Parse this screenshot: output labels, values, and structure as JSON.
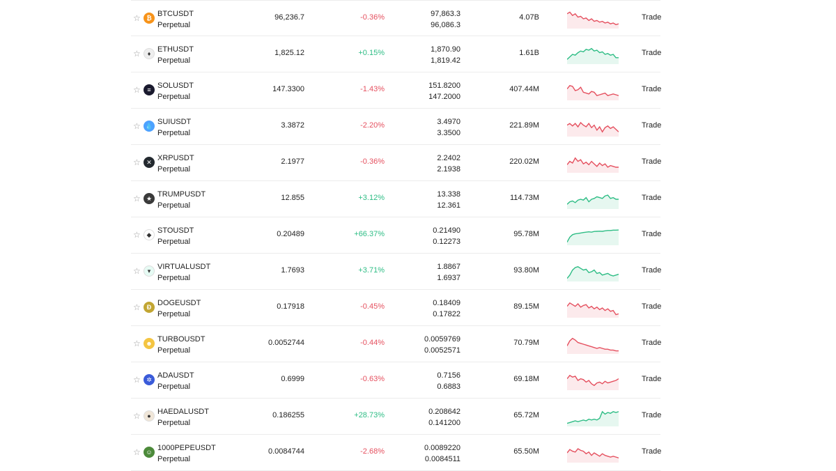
{
  "colors": {
    "negative": "#e5505f",
    "positive": "#2ebd85"
  },
  "rows": [
    {
      "symbol": "BTCUSDT",
      "type": "Perpetual",
      "price": "96,236.7",
      "change": "-0.36%",
      "dir": "neg",
      "high": "97,863.3",
      "low": "96,086.3",
      "volume": "4.07B",
      "trade": "Trade",
      "icon": "bitcoin-icon",
      "icon_color": "#f7931a",
      "icon_glyph": "₿",
      "spark": [
        0.8,
        0.9,
        0.7,
        0.8,
        0.6,
        0.65,
        0.5,
        0.55,
        0.4,
        0.5,
        0.35,
        0.4,
        0.3,
        0.35,
        0.25,
        0.3,
        0.2,
        0.25,
        0.15,
        0.2
      ]
    },
    {
      "symbol": "ETHUSDT",
      "type": "Perpetual",
      "price": "1,825.12",
      "change": "+0.15%",
      "dir": "pos",
      "high": "1,870.90",
      "low": "1,819.42",
      "volume": "1.61B",
      "trade": "Trade",
      "icon": "ethereum-icon",
      "icon_color": "#eeeeee",
      "icon_glyph": "♦",
      "spark": [
        0.2,
        0.35,
        0.5,
        0.45,
        0.6,
        0.7,
        0.65,
        0.8,
        0.75,
        0.85,
        0.7,
        0.75,
        0.6,
        0.65,
        0.5,
        0.55,
        0.45,
        0.5,
        0.3,
        0.3
      ]
    },
    {
      "symbol": "SOLUSDT",
      "type": "Perpetual",
      "price": "147.3300",
      "change": "-1.43%",
      "dir": "neg",
      "high": "151.8200",
      "low": "147.2000",
      "volume": "407.44M",
      "trade": "Trade",
      "icon": "solana-icon",
      "icon_color": "#1a1a2e",
      "icon_glyph": "≡",
      "spark": [
        0.6,
        0.8,
        0.75,
        0.5,
        0.55,
        0.7,
        0.4,
        0.35,
        0.3,
        0.45,
        0.4,
        0.2,
        0.25,
        0.3,
        0.35,
        0.2,
        0.25,
        0.3,
        0.25,
        0.2
      ]
    },
    {
      "symbol": "SUIUSDT",
      "type": "Perpetual",
      "price": "3.3872",
      "change": "-2.20%",
      "dir": "neg",
      "high": "3.4970",
      "low": "3.3500",
      "volume": "221.89M",
      "trade": "Trade",
      "icon": "sui-icon",
      "icon_color": "#4da2ff",
      "icon_glyph": "💧",
      "spark": [
        0.6,
        0.7,
        0.55,
        0.7,
        0.5,
        0.75,
        0.6,
        0.5,
        0.7,
        0.45,
        0.6,
        0.3,
        0.5,
        0.2,
        0.45,
        0.55,
        0.4,
        0.5,
        0.35,
        0.2
      ]
    },
    {
      "symbol": "XRPUSDT",
      "type": "Perpetual",
      "price": "2.1977",
      "change": "-0.36%",
      "dir": "neg",
      "high": "2.2402",
      "low": "2.1938",
      "volume": "220.02M",
      "trade": "Trade",
      "icon": "xrp-icon",
      "icon_color": "#23292f",
      "icon_glyph": "✕",
      "spark": [
        0.4,
        0.6,
        0.5,
        0.8,
        0.6,
        0.7,
        0.45,
        0.55,
        0.4,
        0.6,
        0.45,
        0.3,
        0.5,
        0.35,
        0.45,
        0.25,
        0.35,
        0.3,
        0.25,
        0.25
      ]
    },
    {
      "symbol": "TRUMPUSDT",
      "type": "Perpetual",
      "price": "12.855",
      "change": "+3.12%",
      "dir": "pos",
      "high": "13.338",
      "low": "12.361",
      "volume": "114.73M",
      "trade": "Trade",
      "icon": "trump-icon",
      "icon_color": "#3a3a3a",
      "icon_glyph": "★",
      "spark": [
        0.2,
        0.35,
        0.4,
        0.3,
        0.45,
        0.5,
        0.45,
        0.6,
        0.35,
        0.5,
        0.55,
        0.65,
        0.6,
        0.55,
        0.7,
        0.75,
        0.55,
        0.6,
        0.5,
        0.5
      ]
    },
    {
      "symbol": "STOUSDT",
      "type": "Perpetual",
      "price": "0.20489",
      "change": "+66.37%",
      "dir": "pos",
      "high": "0.21490",
      "low": "0.12273",
      "volume": "95.78M",
      "trade": "Trade",
      "icon": "sto-icon",
      "icon_color": "#ffffff",
      "icon_glyph": "◆",
      "spark": [
        0.1,
        0.4,
        0.55,
        0.6,
        0.62,
        0.65,
        0.68,
        0.7,
        0.72,
        0.7,
        0.74,
        0.75,
        0.76,
        0.75,
        0.78,
        0.8,
        0.8,
        0.82,
        0.82,
        0.83
      ]
    },
    {
      "symbol": "VIRTUALUSDT",
      "type": "Perpetual",
      "price": "1.7693",
      "change": "+3.71%",
      "dir": "pos",
      "high": "1.8867",
      "low": "1.6937",
      "volume": "93.80M",
      "trade": "Trade",
      "icon": "virtual-icon",
      "icon_color": "#e6fbf4",
      "icon_glyph": "▾",
      "spark": [
        0.1,
        0.3,
        0.6,
        0.75,
        0.8,
        0.7,
        0.6,
        0.65,
        0.45,
        0.5,
        0.6,
        0.4,
        0.45,
        0.3,
        0.35,
        0.4,
        0.3,
        0.25,
        0.3,
        0.35
      ]
    },
    {
      "symbol": "DOGEUSDT",
      "type": "Perpetual",
      "price": "0.17918",
      "change": "-0.45%",
      "dir": "neg",
      "high": "0.18409",
      "low": "0.17822",
      "volume": "89.15M",
      "trade": "Trade",
      "icon": "dogecoin-icon",
      "icon_color": "#c2a633",
      "icon_glyph": "Ð",
      "spark": [
        0.6,
        0.8,
        0.7,
        0.6,
        0.75,
        0.55,
        0.65,
        0.7,
        0.5,
        0.6,
        0.45,
        0.55,
        0.4,
        0.5,
        0.35,
        0.45,
        0.3,
        0.35,
        0.1,
        0.15
      ]
    },
    {
      "symbol": "TURBOUSDT",
      "type": "Perpetual",
      "price": "0.0052744",
      "change": "-0.44%",
      "dir": "neg",
      "high": "0.0059769",
      "low": "0.0052571",
      "volume": "70.79M",
      "trade": "Trade",
      "icon": "turbo-icon",
      "icon_color": "#f4c542",
      "icon_glyph": "☻",
      "spark": [
        0.4,
        0.7,
        0.85,
        0.75,
        0.6,
        0.55,
        0.5,
        0.45,
        0.4,
        0.35,
        0.3,
        0.25,
        0.3,
        0.25,
        0.2,
        0.2,
        0.15,
        0.15,
        0.1,
        0.1
      ]
    },
    {
      "symbol": "ADAUSDT",
      "type": "Perpetual",
      "price": "0.6999",
      "change": "-0.63%",
      "dir": "neg",
      "high": "0.7156",
      "low": "0.6883",
      "volume": "69.18M",
      "trade": "Trade",
      "icon": "cardano-icon",
      "icon_color": "#3a5bd9",
      "icon_glyph": "✲",
      "spark": [
        0.6,
        0.8,
        0.7,
        0.75,
        0.5,
        0.6,
        0.55,
        0.4,
        0.5,
        0.3,
        0.2,
        0.35,
        0.4,
        0.3,
        0.45,
        0.35,
        0.4,
        0.45,
        0.5,
        0.6
      ]
    },
    {
      "symbol": "HAEDALUSDT",
      "type": "Perpetual",
      "price": "0.186255",
      "change": "+28.73%",
      "dir": "pos",
      "high": "0.208642",
      "low": "0.141200",
      "volume": "65.72M",
      "trade": "Trade",
      "icon": "haedal-icon",
      "icon_color": "#f0e6d8",
      "icon_glyph": "●",
      "spark": [
        0.1,
        0.15,
        0.2,
        0.25,
        0.2,
        0.25,
        0.3,
        0.25,
        0.35,
        0.3,
        0.35,
        0.3,
        0.4,
        0.8,
        0.65,
        0.75,
        0.7,
        0.8,
        0.75,
        0.8
      ]
    },
    {
      "symbol": "1000PEPEUSDT",
      "type": "Perpetual",
      "price": "0.0084744",
      "change": "-2.68%",
      "dir": "neg",
      "high": "0.0089220",
      "low": "0.0084511",
      "volume": "65.50M",
      "trade": "Trade",
      "icon": "pepe-icon",
      "icon_color": "#4c8a3a",
      "icon_glyph": "☺",
      "spark": [
        0.5,
        0.7,
        0.6,
        0.55,
        0.75,
        0.65,
        0.6,
        0.45,
        0.55,
        0.35,
        0.5,
        0.4,
        0.3,
        0.45,
        0.35,
        0.3,
        0.25,
        0.3,
        0.25,
        0.2
      ]
    }
  ]
}
